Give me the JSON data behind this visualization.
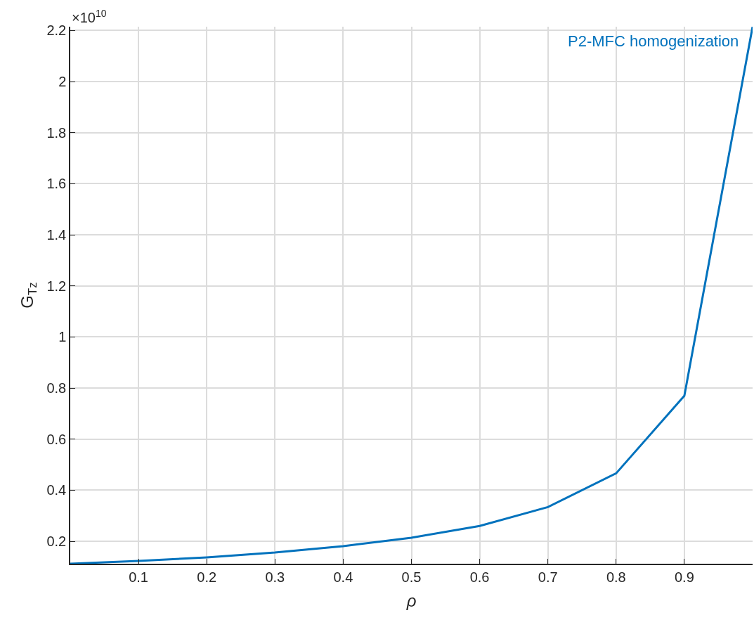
{
  "chart_data": {
    "type": "line",
    "xlabel": "ρ",
    "ylabel": "G$_{Tz}$",
    "annotations": [
      "×10$^{10}$"
    ],
    "x": [
      0,
      0.1,
      0.2,
      0.3,
      0.4,
      0.5,
      0.6,
      0.7,
      0.8,
      0.9,
      1.0
    ],
    "series": [
      {
        "name": "P2-MFC homogenization",
        "color": "#0072bd",
        "values": [
          0.112,
          0.123,
          0.137,
          0.156,
          0.181,
          0.214,
          0.26,
          0.334,
          0.466,
          0.77,
          2.215
        ]
      }
    ],
    "xlim": [
      0,
      1
    ],
    "xticks": [
      0.1,
      0.2,
      0.3,
      0.4,
      0.5,
      0.6,
      0.7,
      0.8,
      0.9
    ],
    "ylim": [
      0.112,
      2.215
    ],
    "yticks": [
      0.2,
      0.4,
      0.6,
      0.8,
      1,
      1.2,
      1.4,
      1.6,
      1.8,
      2,
      2.2
    ],
    "grid": true,
    "marker": "none",
    "line_style": "solid"
  }
}
